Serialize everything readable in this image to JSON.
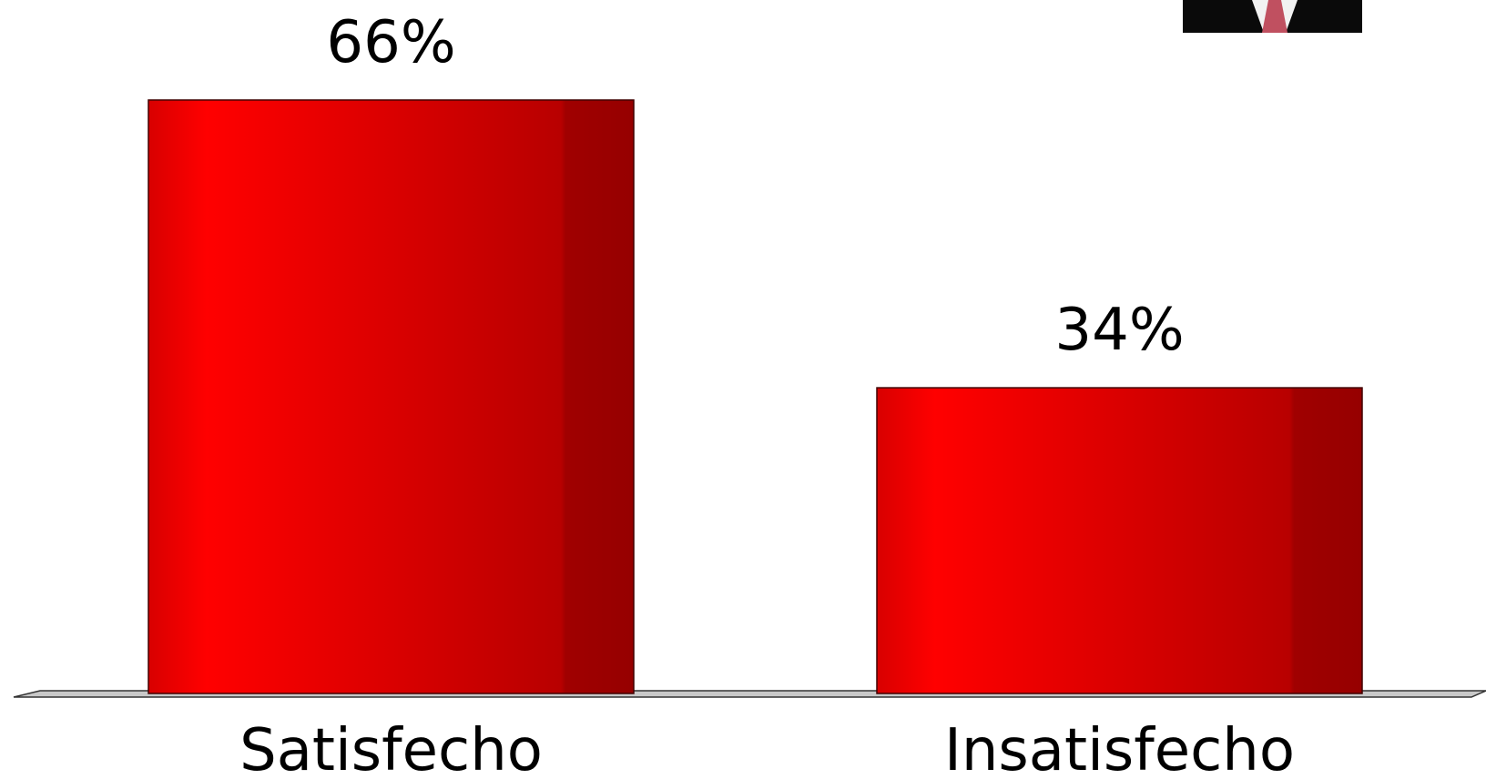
{
  "chart_data": {
    "type": "bar",
    "categories": [
      "Satisfecho",
      "Insatisfecho"
    ],
    "values": [
      66,
      34
    ],
    "value_labels": [
      "66%",
      "34%"
    ],
    "color": "#e00000"
  }
}
